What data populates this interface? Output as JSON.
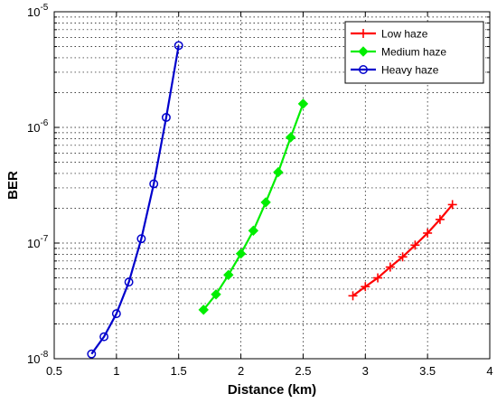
{
  "chart_data": {
    "type": "line",
    "xlabel": "Distance (km)",
    "ylabel": "BER",
    "x_scale": "linear",
    "y_scale": "log",
    "xlim": [
      0.5,
      4
    ],
    "ylim": [
      1e-08,
      1e-05
    ],
    "x_ticks": [
      0.5,
      1,
      1.5,
      2,
      2.5,
      3,
      3.5,
      4
    ],
    "x_tick_labels": [
      "0.5",
      "1",
      "1.5",
      "2",
      "2.5",
      "3",
      "3.5",
      "4"
    ],
    "y_tick_labels": [
      {
        "value": 1e-08,
        "base": "10",
        "exp": "-8"
      },
      {
        "value": 1e-07,
        "base": "10",
        "exp": "-7"
      },
      {
        "value": 1e-06,
        "base": "10",
        "exp": "-6"
      },
      {
        "value": 1e-05,
        "base": "10",
        "exp": "-5"
      }
    ],
    "grid": true,
    "legend_position": "top-right",
    "series": [
      {
        "name": "Low haze",
        "color": "#ff0000",
        "marker": "plus",
        "x": [
          2.9,
          3.0,
          3.1,
          3.2,
          3.3,
          3.4,
          3.5,
          3.6,
          3.7
        ],
        "y": [
          3.5e-08,
          4.2e-08,
          5e-08,
          6.2e-08,
          7.6e-08,
          9.6e-08,
          1.22e-07,
          1.6e-07,
          2.15e-07
        ]
      },
      {
        "name": "Medium haze",
        "color": "#00ee00",
        "marker": "diamond",
        "x": [
          1.7,
          1.8,
          1.9,
          2.0,
          2.1,
          2.2,
          2.3,
          2.4,
          2.5
        ],
        "y": [
          2.65e-08,
          3.6e-08,
          5.3e-08,
          8.1e-08,
          1.28e-07,
          2.25e-07,
          4.1e-07,
          8.2e-07,
          1.6e-06
        ]
      },
      {
        "name": "Heavy haze",
        "color": "#0000cc",
        "marker": "circle",
        "x": [
          0.8,
          0.9,
          1.0,
          1.1,
          1.2,
          1.3,
          1.4,
          1.5
        ],
        "y": [
          1.1e-08,
          1.55e-08,
          2.45e-08,
          4.6e-08,
          1.09e-07,
          3.25e-07,
          1.22e-06,
          5.1e-06
        ]
      }
    ]
  }
}
